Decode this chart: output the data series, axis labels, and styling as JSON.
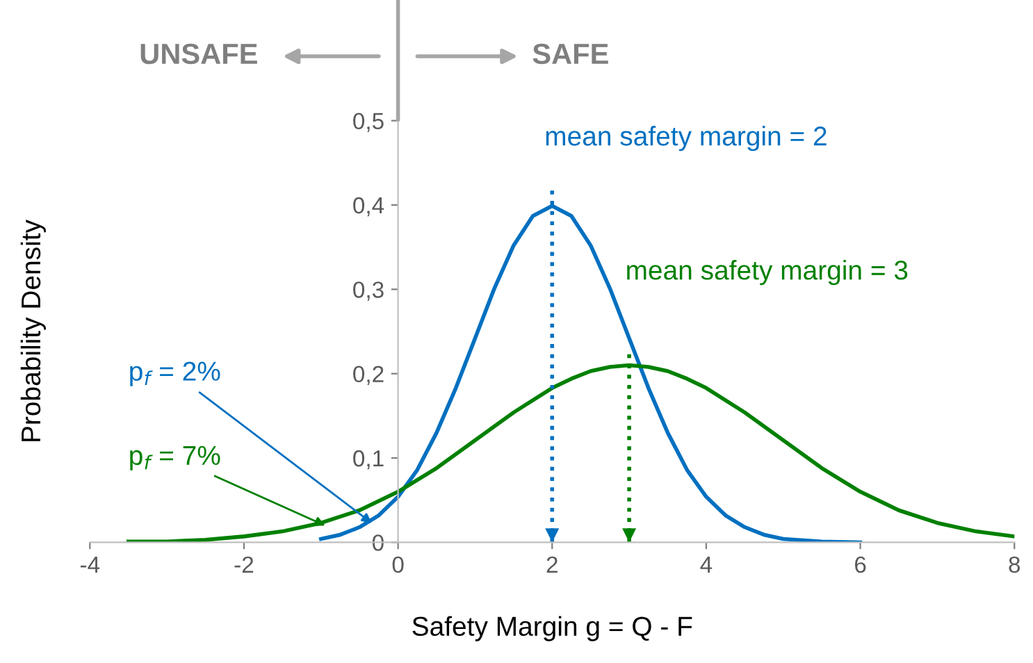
{
  "chart_data": {
    "type": "line",
    "xlabel": "Safety Margin g = Q - F",
    "ylabel": "Probability Density",
    "series": [
      {
        "color": "#0070c0",
        "x": [
          -1,
          -0.75,
          -0.5,
          -0.25,
          0,
          0.25,
          0.5,
          0.75,
          1,
          1.25,
          1.5,
          1.75,
          2,
          2.25,
          2.5,
          2.75,
          3,
          3.25,
          3.5,
          3.75,
          4,
          4.25,
          4.5,
          4.75,
          5,
          5.5,
          6
        ],
        "values": [
          0.004,
          0.009,
          0.018,
          0.032,
          0.054,
          0.086,
          0.13,
          0.183,
          0.242,
          0.301,
          0.352,
          0.387,
          0.399,
          0.387,
          0.352,
          0.301,
          0.242,
          0.183,
          0.13,
          0.086,
          0.054,
          0.032,
          0.018,
          0.009,
          0.004,
          0.001,
          0
        ]
      },
      {
        "color": "#008000",
        "x": [
          -3.5,
          -3,
          -2.5,
          -2,
          -1.5,
          -1,
          -0.5,
          0,
          0.5,
          1,
          1.5,
          2,
          2.25,
          2.5,
          2.75,
          3,
          3.25,
          3.5,
          3.75,
          4,
          4.5,
          5,
          5.5,
          6,
          6.5,
          7,
          7.5,
          8
        ],
        "values": [
          0.001,
          0.001,
          0.003,
          0.007,
          0.013,
          0.023,
          0.038,
          0.06,
          0.088,
          0.121,
          0.154,
          0.183,
          0.194,
          0.203,
          0.208,
          0.21,
          0.208,
          0.203,
          0.194,
          0.183,
          0.154,
          0.121,
          0.088,
          0.06,
          0.038,
          0.023,
          0.013,
          0.007
        ]
      }
    ],
    "annotations": [
      {
        "text": "p$_{f}$ = 2%",
        "x": -0.3,
        "y": 0.02
      },
      {
        "text": "p$_{f}$ = 7%",
        "x": -0.9,
        "y": 0.018
      },
      "UNSAFE",
      "SAFE"
    ],
    "ref_lines": [
      {
        "axis": "x",
        "value": 2,
        "label": "mean safety margin = 2",
        "color": "#0070c0",
        "line_style": "dotted"
      },
      {
        "axis": "x",
        "value": 3,
        "label": "mean safety margin = 3",
        "color": "#008000",
        "line_style": "dotted"
      }
    ],
    "xlim": [
      -4,
      8
    ],
    "ylim": [
      0,
      0.5
    ],
    "xticks": [
      -4,
      -2,
      0,
      2,
      4,
      6,
      8
    ],
    "yticks": [
      {
        "value": 0,
        "label": "0"
      },
      {
        "value": 0.1,
        "label": "0,1"
      },
      {
        "value": 0.2,
        "label": "0,2"
      },
      {
        "value": 0.3,
        "label": "0,3"
      },
      {
        "value": 0.4,
        "label": "0,4"
      },
      {
        "value": 0.5,
        "label": "0,5"
      }
    ],
    "grid": false,
    "legend": false,
    "marker": "none",
    "line_style": "solid"
  }
}
